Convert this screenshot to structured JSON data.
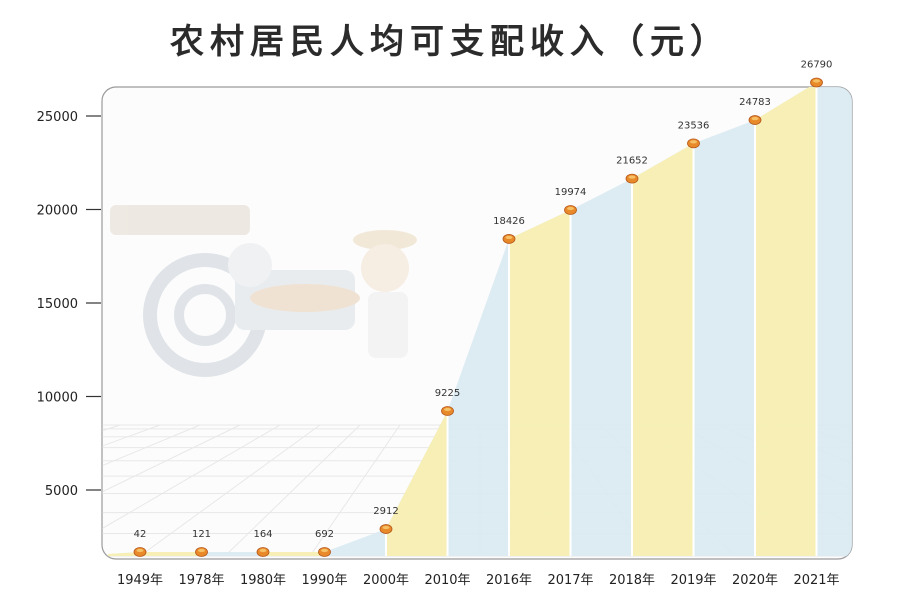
{
  "colors": {
    "bar": "#f8efb2",
    "area": "#d9eaf2",
    "marker": "#e8892a",
    "frame": "#9a9a9a",
    "grid": "#d8d8d8"
  },
  "decoration": {
    "background_icon": "rural-farmer-illustration"
  },
  "chart_data": {
    "type": "bar",
    "title": "农村居民人均可支配收入（元）",
    "xlabel": "",
    "ylabel": "",
    "categories": [
      "1949年",
      "1978年",
      "1980年",
      "1990年",
      "2000年",
      "2010年",
      "2016年",
      "2017年",
      "2018年",
      "2019年",
      "2020年",
      "2021年"
    ],
    "values": [
      42,
      121,
      164,
      692,
      2912,
      9225,
      18426,
      19974,
      21652,
      23536,
      24783,
      26790
    ],
    "value_labels": [
      "42",
      "121",
      "164",
      "692",
      "2912",
      "9225",
      "18426",
      "19974",
      "21652",
      "23536",
      "24783",
      "26790"
    ],
    "y_ticks": [
      5000,
      10000,
      15000,
      20000,
      25000
    ],
    "y_tick_labels": [
      "5000",
      "10000",
      "15000",
      "20000",
      "25000"
    ],
    "grid": false,
    "legend": "none"
  }
}
